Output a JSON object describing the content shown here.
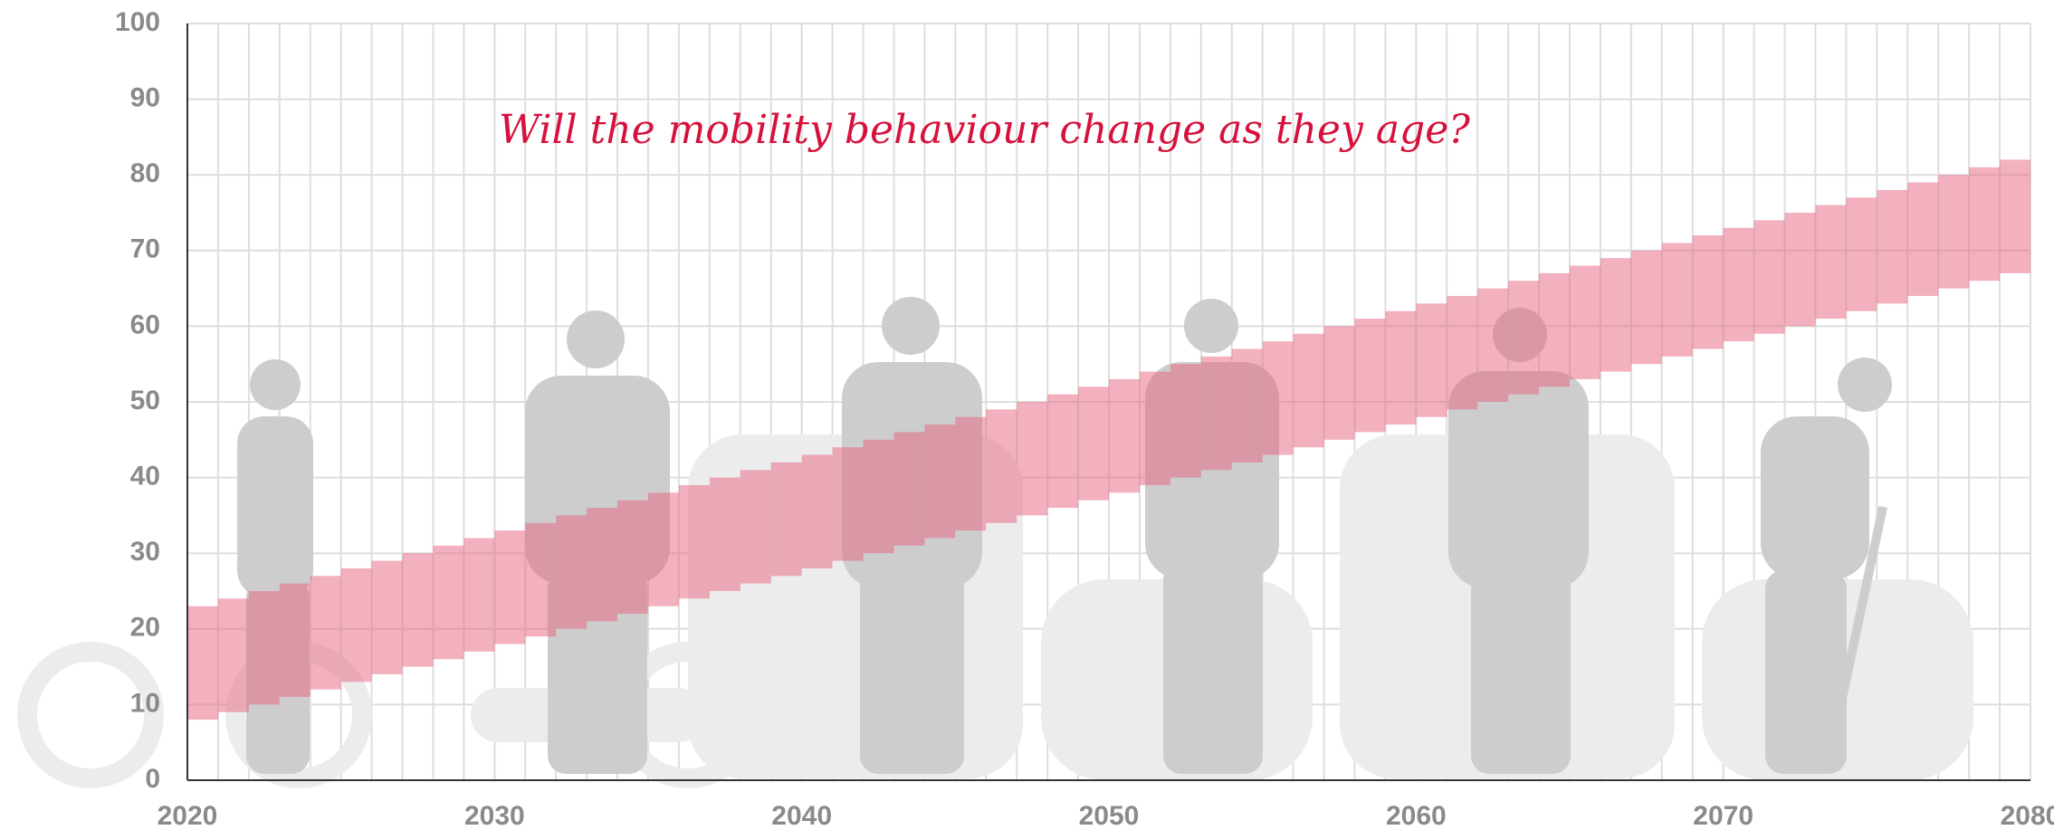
{
  "chart_data": {
    "type": "range-bar",
    "annotation": "Will the mobility behaviour change as they age?",
    "x": [
      2020,
      2021,
      2022,
      2023,
      2024,
      2025,
      2026,
      2027,
      2028,
      2029,
      2030,
      2031,
      2032,
      2033,
      2034,
      2035,
      2036,
      2037,
      2038,
      2039,
      2040,
      2041,
      2042,
      2043,
      2044,
      2045,
      2046,
      2047,
      2048,
      2049,
      2050,
      2051,
      2052,
      2053,
      2054,
      2055,
      2056,
      2057,
      2058,
      2059,
      2060,
      2061,
      2062,
      2063,
      2064,
      2065,
      2066,
      2067,
      2068,
      2069,
      2070,
      2071,
      2072,
      2073,
      2074,
      2075,
      2076,
      2077,
      2078,
      2079
    ],
    "low": [
      8,
      9,
      10,
      11,
      12,
      13,
      14,
      15,
      16,
      17,
      18,
      19,
      20,
      21,
      22,
      23,
      24,
      25,
      26,
      27,
      28,
      29,
      30,
      31,
      32,
      33,
      34,
      35,
      36,
      37,
      38,
      39,
      40,
      41,
      42,
      43,
      44,
      45,
      46,
      47,
      48,
      49,
      50,
      51,
      52,
      53,
      54,
      55,
      56,
      57,
      58,
      59,
      60,
      61,
      62,
      63,
      64,
      65,
      66,
      67
    ],
    "high": [
      23,
      24,
      25,
      26,
      27,
      28,
      29,
      30,
      31,
      32,
      33,
      34,
      35,
      36,
      37,
      38,
      39,
      40,
      41,
      42,
      43,
      44,
      45,
      46,
      47,
      48,
      49,
      50,
      51,
      52,
      53,
      54,
      55,
      56,
      57,
      58,
      59,
      60,
      61,
      62,
      63,
      64,
      65,
      66,
      67,
      68,
      69,
      70,
      71,
      72,
      73,
      74,
      75,
      76,
      77,
      78,
      79,
      80,
      81,
      82
    ],
    "color": "#e8627d",
    "xlim": [
      2020,
      2080
    ],
    "xticks": [
      2020,
      2030,
      2040,
      2050,
      2060,
      2070,
      2080
    ],
    "ylim": [
      0,
      100
    ],
    "yticks": [
      0,
      10,
      20,
      30,
      40,
      50,
      60,
      70,
      80,
      90,
      100
    ],
    "grid": true
  }
}
